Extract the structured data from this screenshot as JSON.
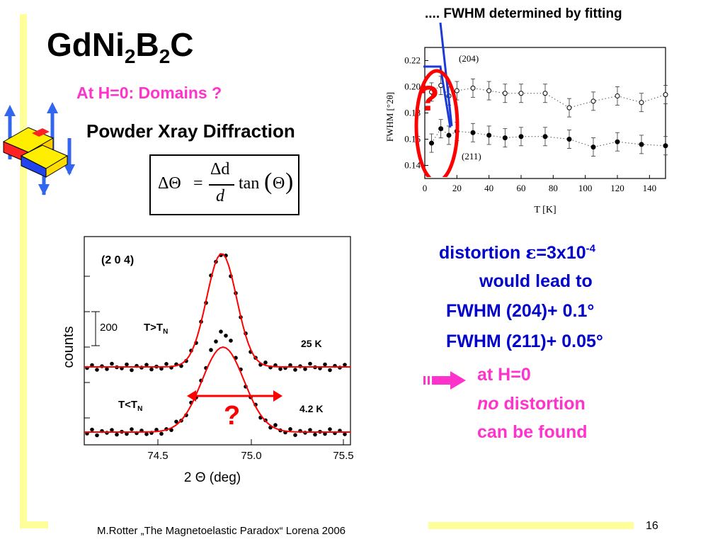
{
  "slide": {
    "title": {
      "main": "GdNi",
      "sub1": "2",
      "mid": "B",
      "sub2": "2",
      "end": "C"
    },
    "subtitle": "At H=0: Domains ?",
    "method": "Powder Xray Diffraction",
    "fit_note": ".... FWHM determined by fitting",
    "distortion": {
      "line1_prefix": "distortion ",
      "epsilon": "ε",
      "line1_value": "=3x10",
      "line1_exp": "-4",
      "line2": "would lead to",
      "line3": "FWHM (204)+ 0.1°",
      "line4": "FWHM (211)+ 0.05°"
    },
    "conclusion": {
      "line1": "at H=0",
      "line2_italic": "no",
      "line2_rest": " distortion",
      "line3": "can be found"
    },
    "question_mark": "?",
    "footer": "M.Rotter „The Magnetoelastic Paradox“ Lorena 2006",
    "page_number": "16",
    "colors": {
      "pink": "#ff33cc",
      "blue": "#0000cc",
      "red": "#ff0000",
      "yellow": "#ffff99"
    }
  },
  "formula": {
    "lhs": "ΔΘ",
    "eq": "=",
    "num": "Δd",
    "den": "d",
    "fn": "tan",
    "arg": "Θ"
  },
  "fwhm_chart": {
    "type": "scatter",
    "xlabel": "T [K]",
    "ylabel": "FWHM [°2θ]",
    "xlim": [
      0,
      150
    ],
    "ylim": [
      0.13,
      0.23
    ],
    "x_ticks": [
      "0",
      "20",
      "40",
      "60",
      "80",
      "100",
      "120",
      "140"
    ],
    "y_ticks": [
      "0.22",
      "0.20",
      "0.18",
      "0.16",
      "0.14"
    ],
    "series": [
      {
        "name": "(204)",
        "marker": "open",
        "x": [
          4.2,
          10,
          15,
          20,
          30,
          40,
          50,
          60,
          75,
          90,
          105,
          120,
          135,
          150
        ],
        "y": [
          0.196,
          0.201,
          0.193,
          0.197,
          0.199,
          0.197,
          0.195,
          0.195,
          0.195,
          0.184,
          0.189,
          0.193,
          0.188,
          0.194
        ]
      },
      {
        "name": "(211)",
        "marker": "filled",
        "x": [
          4.2,
          10,
          15,
          20,
          30,
          40,
          50,
          60,
          75,
          90,
          105,
          120,
          135,
          150
        ],
        "y": [
          0.157,
          0.168,
          0.163,
          0.166,
          0.165,
          0.163,
          0.161,
          0.162,
          0.162,
          0.16,
          0.154,
          0.158,
          0.156,
          0.155
        ]
      }
    ]
  },
  "powder_chart": {
    "type": "line",
    "title": "(2 0 4)",
    "xlabel": "2 Θ  (deg)",
    "ylabel": "counts",
    "x_ticks": [
      "74.5",
      "75.0",
      "75.5"
    ],
    "scale_label": "200",
    "series": [
      {
        "name": "T>T",
        "sub": "N",
        "temp": "25 K"
      },
      {
        "name": "T<T",
        "sub": "N",
        "temp": "4.2 K"
      }
    ]
  }
}
